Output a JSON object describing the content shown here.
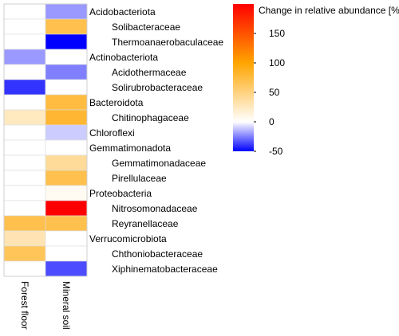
{
  "chart_data": {
    "type": "heatmap",
    "columns": [
      "Forest floor",
      "Mineral soil"
    ],
    "rows": [
      {
        "label": "Acidobacteriota",
        "level": "phylum",
        "values": [
          0,
          -20
        ]
      },
      {
        "label": "Solibacteraceae",
        "level": "family",
        "values": [
          0,
          70
        ]
      },
      {
        "label": "Thermoanaerobaculaceae",
        "level": "family",
        "values": [
          0,
          -50
        ]
      },
      {
        "label": "Actinobacteriota",
        "level": "phylum",
        "values": [
          -20,
          0
        ]
      },
      {
        "label": "Acidothermaceae",
        "level": "family",
        "values": [
          0,
          -25
        ]
      },
      {
        "label": "Solirubrobacteraceae",
        "level": "family",
        "values": [
          -40,
          0
        ]
      },
      {
        "label": "Bacteroidota",
        "level": "phylum",
        "values": [
          0,
          75
        ]
      },
      {
        "label": "Chitinophagaceae",
        "level": "family",
        "values": [
          25,
          80
        ]
      },
      {
        "label": "Chloroflexi",
        "level": "phylum",
        "values": [
          0,
          -10
        ]
      },
      {
        "label": "Gemmatimonadota",
        "level": "phylum",
        "values": [
          0,
          0
        ]
      },
      {
        "label": "Gemmatimonadaceae",
        "level": "family",
        "values": [
          0,
          40
        ]
      },
      {
        "label": "Pirellulaceae",
        "level": "family",
        "values": [
          0,
          70
        ]
      },
      {
        "label": "Proteobacteria",
        "level": "phylum",
        "values": [
          0,
          5
        ]
      },
      {
        "label": "Nitrosomonadaceae",
        "level": "family",
        "values": [
          0,
          200
        ]
      },
      {
        "label": "Reyranellaceae",
        "level": "family",
        "values": [
          70,
          70
        ]
      },
      {
        "label": "Verrucomicrobiota",
        "level": "phylum",
        "values": [
          30,
          0
        ]
      },
      {
        "label": "Chthoniobacteraceae",
        "level": "family",
        "values": [
          65,
          0
        ]
      },
      {
        "label": "Xiphinematobacteraceae",
        "level": "family",
        "values": [
          0,
          -35
        ]
      }
    ],
    "legend": {
      "title": "Change in relative abundance [%]",
      "ticks": [
        150,
        100,
        50,
        0,
        -50
      ],
      "range": [
        -50,
        200
      ]
    },
    "colors": {
      "negative": "#0000ff",
      "zero": "#ffffff",
      "mid_positive": "#ffa500",
      "max_positive": "#ff0000"
    }
  }
}
